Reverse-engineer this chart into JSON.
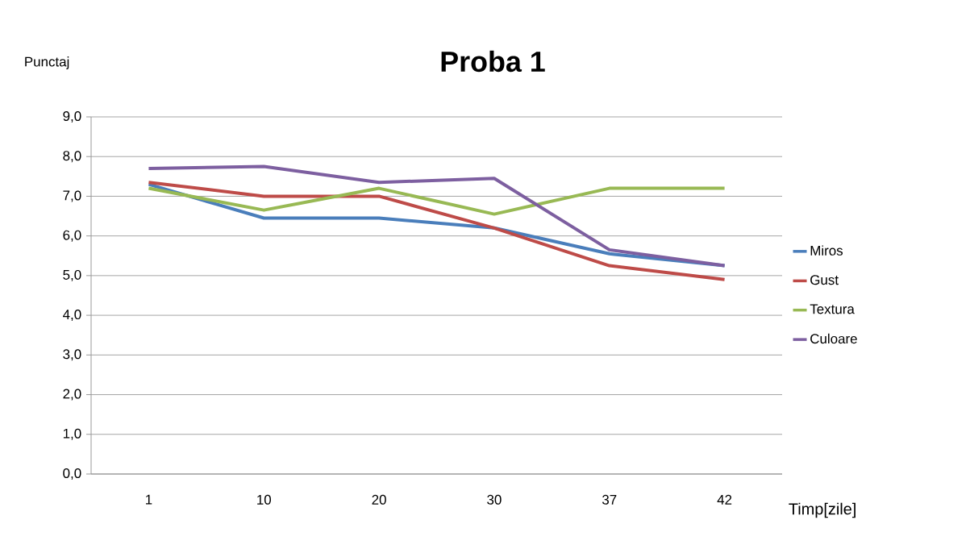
{
  "chart_data": {
    "type": "line",
    "title": "Proba 1",
    "xlabel": "Timp[zile]",
    "ylabel": "Punctaj",
    "categories": [
      "1",
      "10",
      "20",
      "30",
      "37",
      "42"
    ],
    "series": [
      {
        "name": "Miros",
        "color": "#4a7ebb",
        "values": [
          7.3,
          6.45,
          6.45,
          6.2,
          5.55,
          5.25
        ]
      },
      {
        "name": "Gust",
        "color": "#be4b48",
        "values": [
          7.35,
          7.0,
          7.0,
          6.2,
          5.25,
          4.9
        ]
      },
      {
        "name": "Textura",
        "color": "#98b954",
        "values": [
          7.2,
          6.65,
          7.2,
          6.55,
          7.2,
          7.2
        ]
      },
      {
        "name": "Culoare",
        "color": "#7d5fa0",
        "values": [
          7.7,
          7.75,
          7.35,
          7.45,
          5.65,
          5.25
        ]
      }
    ],
    "ylim": [
      0,
      9
    ],
    "yticks": [
      {
        "value": 0,
        "label": "0,0"
      },
      {
        "value": 1,
        "label": "1,0"
      },
      {
        "value": 2,
        "label": "2,0"
      },
      {
        "value": 3,
        "label": "3,0"
      },
      {
        "value": 4,
        "label": "4,0"
      },
      {
        "value": 5,
        "label": "5,0"
      },
      {
        "value": 6,
        "label": "6,0"
      },
      {
        "value": 7,
        "label": "7,0"
      },
      {
        "value": 8,
        "label": "8,0"
      },
      {
        "value": 9,
        "label": "9,0"
      }
    ],
    "grid": "y",
    "legend": "right",
    "marker": "none",
    "line_style": "solid"
  }
}
